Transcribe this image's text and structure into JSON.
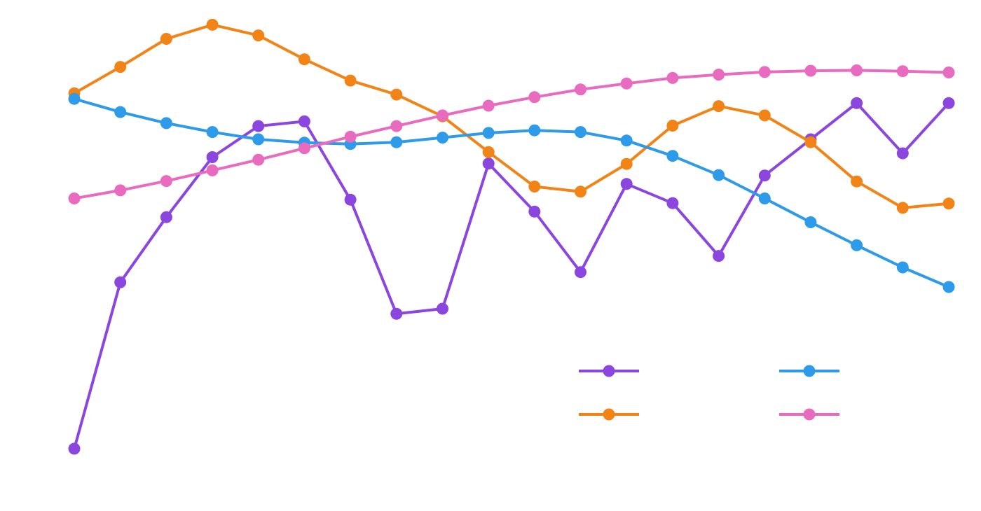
{
  "chart_data": {
    "type": "line",
    "title": "",
    "xlabel": "",
    "ylabel": "",
    "grid": false,
    "axes_visible": false,
    "legend_position": "bottom-right",
    "x": [
      0,
      1,
      2,
      3,
      4,
      5,
      6,
      7,
      8,
      9,
      10,
      11,
      12,
      13,
      14,
      15,
      16,
      17,
      18,
      19
    ],
    "xlim": [
      0,
      19
    ],
    "ylim": [
      0,
      100
    ],
    "series": [
      {
        "color": "#8B46E0",
        "values": [
          0,
          39.1,
          54.4,
          68.5,
          75.8,
          76.9,
          58.5,
          31.7,
          32.9,
          67.0,
          55.7,
          41.5,
          62.2,
          57.7,
          45.3,
          64.2,
          72.7,
          81.2,
          69.4,
          81.2
        ]
      },
      {
        "color": "#F28417",
        "values": [
          83.5,
          89.7,
          96.3,
          99.6,
          97.1,
          91.5,
          86.5,
          83.2,
          78.1,
          69.7,
          61.6,
          60.4,
          66.9,
          75.9,
          80.5,
          78.3,
          72.0,
          62.8,
          56.6,
          57.6
        ]
      },
      {
        "color": "#2E9AEA",
        "values": [
          82.2,
          79.1,
          76.5,
          74.4,
          72.7,
          71.9,
          71.6,
          72.0,
          73.1,
          74.2,
          74.8,
          74.4,
          72.4,
          68.8,
          64.3,
          58.8,
          53.2,
          47.8,
          42.6,
          38.0
        ]
      },
      {
        "color": "#E96BBF",
        "values": [
          58.8,
          60.7,
          62.9,
          65.4,
          67.9,
          70.6,
          73.3,
          75.8,
          78.3,
          80.6,
          82.6,
          84.4,
          85.8,
          87.1,
          87.9,
          88.5,
          88.8,
          88.9,
          88.7,
          88.4
        ]
      }
    ]
  }
}
